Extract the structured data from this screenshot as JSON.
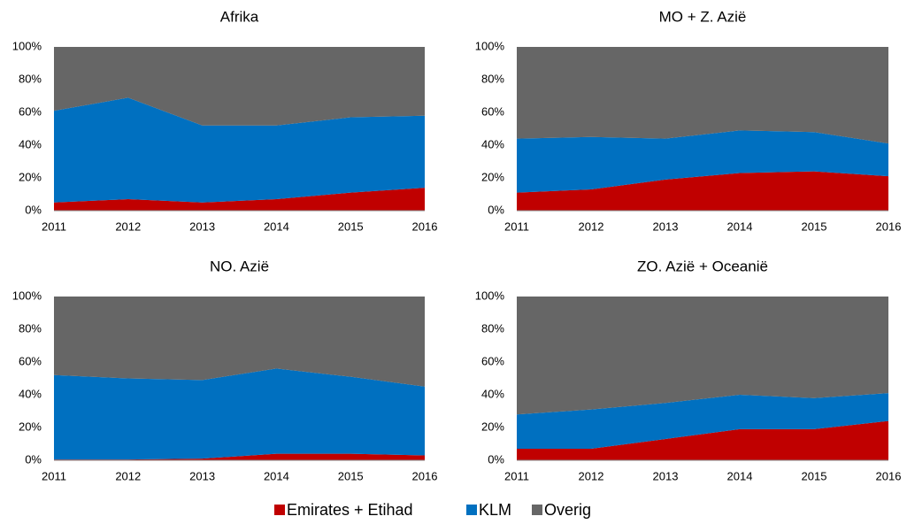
{
  "chart_data": [
    {
      "type": "stacked-area",
      "title": "Afrika",
      "categories": [
        "2011",
        "2012",
        "2013",
        "2014",
        "2015",
        "2016"
      ],
      "series": [
        {
          "name": "Emirates + Etihad",
          "color": "#c00000",
          "values": [
            5,
            7,
            5,
            7,
            11,
            14
          ]
        },
        {
          "name": "KLM",
          "color": "#0070c0",
          "values": [
            56,
            62,
            47,
            45,
            46,
            44
          ]
        },
        {
          "name": "Overig",
          "color": "#666666",
          "values": [
            39,
            31,
            48,
            48,
            43,
            42
          ]
        }
      ],
      "ylim": [
        0,
        100
      ],
      "yticks": [
        {
          "value": 0,
          "label": "0%"
        },
        {
          "value": 20,
          "label": "20%"
        },
        {
          "value": 40,
          "label": "40%"
        },
        {
          "value": 60,
          "label": "60%"
        },
        {
          "value": 80,
          "label": "80%"
        },
        {
          "value": 100,
          "label": "100%"
        }
      ],
      "grid": false
    },
    {
      "type": "stacked-area",
      "title": "MO + Z. Azië",
      "categories": [
        "2011",
        "2012",
        "2013",
        "2014",
        "2015",
        "2016"
      ],
      "series": [
        {
          "name": "Emirates + Etihad",
          "color": "#c00000",
          "values": [
            11,
            13,
            19,
            23,
            24,
            21
          ]
        },
        {
          "name": "KLM",
          "color": "#0070c0",
          "values": [
            33,
            32,
            25,
            26,
            24,
            20
          ]
        },
        {
          "name": "Overig",
          "color": "#666666",
          "values": [
            56,
            55,
            56,
            51,
            52,
            59
          ]
        }
      ],
      "ylim": [
        0,
        100
      ],
      "yticks": [
        {
          "value": 0,
          "label": "0%"
        },
        {
          "value": 20,
          "label": "20%"
        },
        {
          "value": 40,
          "label": "40%"
        },
        {
          "value": 60,
          "label": "60%"
        },
        {
          "value": 80,
          "label": "80%"
        },
        {
          "value": 100,
          "label": "100%"
        }
      ],
      "grid": false
    },
    {
      "type": "stacked-area",
      "title": "NO. Azië",
      "categories": [
        "2011",
        "2012",
        "2013",
        "2014",
        "2015",
        "2016"
      ],
      "series": [
        {
          "name": "Emirates + Etihad",
          "color": "#c00000",
          "values": [
            0.5,
            0.5,
            1,
            4,
            4,
            3
          ]
        },
        {
          "name": "KLM",
          "color": "#0070c0",
          "values": [
            51.5,
            49.5,
            48,
            52,
            47,
            42
          ]
        },
        {
          "name": "Overig",
          "color": "#666666",
          "values": [
            48,
            50,
            51,
            44,
            49,
            55
          ]
        }
      ],
      "ylim": [
        0,
        100
      ],
      "yticks": [
        {
          "value": 0,
          "label": "0%"
        },
        {
          "value": 20,
          "label": "20%"
        },
        {
          "value": 40,
          "label": "40%"
        },
        {
          "value": 60,
          "label": "60%"
        },
        {
          "value": 80,
          "label": "80%"
        },
        {
          "value": 100,
          "label": "100%"
        }
      ],
      "grid": false
    },
    {
      "type": "stacked-area",
      "title": "ZO. Azië + Oceanië",
      "categories": [
        "2011",
        "2012",
        "2013",
        "2014",
        "2015",
        "2016"
      ],
      "series": [
        {
          "name": "Emirates + Etihad",
          "color": "#c00000",
          "values": [
            7,
            7,
            13,
            19,
            19,
            24
          ]
        },
        {
          "name": "KLM",
          "color": "#0070c0",
          "values": [
            21,
            24,
            22,
            21,
            19,
            17
          ]
        },
        {
          "name": "Overig",
          "color": "#666666",
          "values": [
            72,
            69,
            65,
            60,
            62,
            59
          ]
        }
      ],
      "ylim": [
        0,
        100
      ],
      "yticks": [
        {
          "value": 0,
          "label": "0%"
        },
        {
          "value": 20,
          "label": "20%"
        },
        {
          "value": 40,
          "label": "40%"
        },
        {
          "value": 60,
          "label": "60%"
        },
        {
          "value": 80,
          "label": "80%"
        },
        {
          "value": 100,
          "label": "100%"
        }
      ],
      "grid": false
    }
  ]
}
